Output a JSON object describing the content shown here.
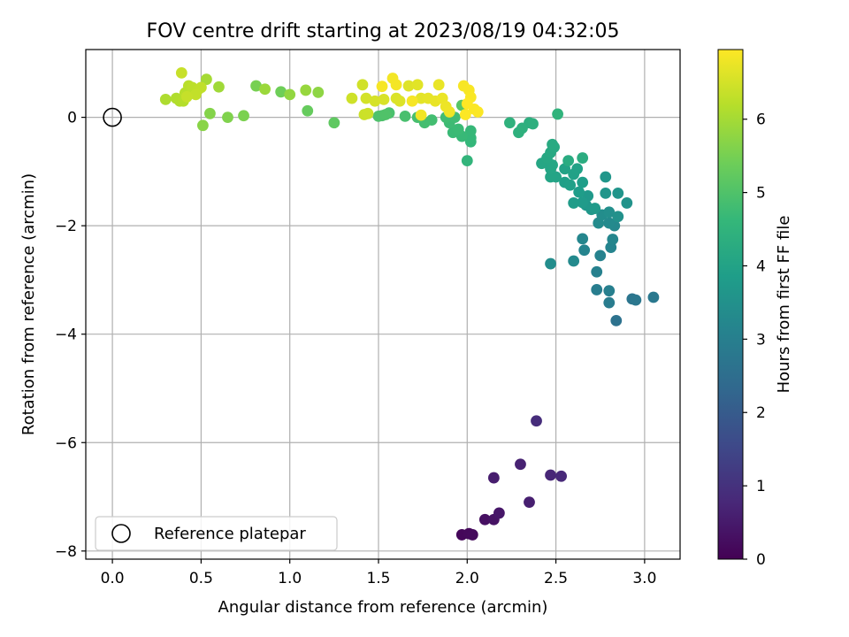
{
  "chart_data": {
    "type": "scatter",
    "title": "FOV centre drift starting at 2023/08/19 04:32:05",
    "xlabel": "Angular distance from reference (arcmin)",
    "ylabel": "Rotation from reference (arcmin)",
    "xlim": [
      -0.15,
      3.2
    ],
    "ylim": [
      -8.15,
      1.25
    ],
    "xticks": [
      0.0,
      0.5,
      1.0,
      1.5,
      2.0,
      2.5,
      3.0
    ],
    "xtick_labels": [
      "0.0",
      "0.5",
      "1.0",
      "1.5",
      "2.0",
      "2.5",
      "3.0"
    ],
    "yticks": [
      0,
      -2,
      -4,
      -6,
      -8
    ],
    "ytick_labels": [
      "0",
      "−2",
      "−4",
      "−6",
      "−8"
    ],
    "grid": true,
    "legend": {
      "position": "lower-left",
      "entries": [
        "Reference platepar"
      ]
    },
    "reference_point": {
      "x": 0.0,
      "y": 0.0,
      "label": "Reference platepar"
    },
    "colorbar": {
      "label": "Hours from first FF file",
      "colormap": "viridis",
      "range": [
        0,
        6.95
      ],
      "ticks": [
        0,
        1,
        2,
        3,
        4,
        5,
        6
      ],
      "tick_labels": [
        "0",
        "1",
        "2",
        "3",
        "4",
        "5",
        "6"
      ]
    },
    "colormap_stops": [
      "#440154",
      "#482878",
      "#3e4989",
      "#31688e",
      "#26828e",
      "#1f9e89",
      "#35b779",
      "#6ece58",
      "#b5de2b",
      "#fde725"
    ],
    "series": [
      {
        "values": [
          [
            1.97,
            -7.7,
            0.12
          ],
          [
            2.01,
            -7.68,
            0.15
          ],
          [
            2.03,
            -7.7,
            0.18
          ],
          [
            2.1,
            -7.42,
            0.3
          ],
          [
            2.15,
            -7.42,
            0.35
          ],
          [
            2.18,
            -7.3,
            0.42
          ],
          [
            2.15,
            -6.65,
            0.55
          ],
          [
            2.3,
            -6.4,
            0.65
          ],
          [
            2.35,
            -7.1,
            0.6
          ],
          [
            2.47,
            -6.6,
            0.75
          ],
          [
            2.53,
            -6.62,
            0.8
          ],
          [
            2.39,
            -5.6,
            0.9
          ],
          [
            2.84,
            -3.75,
            2.6
          ],
          [
            2.93,
            -3.35,
            2.7
          ],
          [
            2.95,
            -3.37,
            2.75
          ],
          [
            3.05,
            -3.32,
            2.8
          ],
          [
            2.8,
            -3.42,
            2.9
          ],
          [
            2.73,
            -3.18,
            2.95
          ],
          [
            2.8,
            -3.2,
            3.0
          ],
          [
            2.73,
            -2.85,
            3.05
          ],
          [
            2.75,
            -2.55,
            3.1
          ],
          [
            2.81,
            -2.4,
            3.15
          ],
          [
            2.82,
            -2.25,
            3.2
          ],
          [
            2.83,
            -2.0,
            3.25
          ],
          [
            2.8,
            -1.95,
            3.3
          ],
          [
            2.74,
            -1.95,
            3.35
          ],
          [
            2.76,
            -1.8,
            3.4
          ],
          [
            2.8,
            -1.75,
            3.45
          ],
          [
            2.85,
            -1.83,
            3.5
          ],
          [
            2.9,
            -1.58,
            3.55
          ],
          [
            2.85,
            -1.4,
            3.6
          ],
          [
            2.78,
            -1.4,
            3.62
          ],
          [
            2.78,
            -1.1,
            3.65
          ],
          [
            2.7,
            -1.7,
            3.68
          ],
          [
            2.67,
            -1.62,
            3.7
          ],
          [
            2.68,
            -1.45,
            3.72
          ],
          [
            2.72,
            -1.68,
            3.75
          ],
          [
            2.65,
            -1.57,
            3.78
          ],
          [
            2.6,
            -1.58,
            3.8
          ],
          [
            2.63,
            -1.38,
            3.82
          ],
          [
            2.65,
            -1.2,
            3.85
          ],
          [
            2.65,
            -2.24,
            3.2
          ],
          [
            2.66,
            -2.45,
            3.15
          ],
          [
            2.6,
            -2.65,
            3.3
          ],
          [
            2.47,
            -2.7,
            3.4
          ],
          [
            2.55,
            -1.2,
            3.9
          ],
          [
            2.58,
            -1.25,
            3.92
          ],
          [
            2.6,
            -1.05,
            3.95
          ],
          [
            2.62,
            -0.95,
            3.97
          ],
          [
            2.55,
            -0.95,
            4.0
          ],
          [
            2.5,
            -1.1,
            4.02
          ],
          [
            2.47,
            -1.1,
            4.05
          ],
          [
            2.47,
            -0.95,
            4.07
          ],
          [
            2.48,
            -0.88,
            4.1
          ],
          [
            2.42,
            -0.85,
            4.12
          ],
          [
            2.45,
            -0.75,
            4.15
          ],
          [
            2.47,
            -0.65,
            4.18
          ],
          [
            2.49,
            -0.55,
            4.2
          ],
          [
            2.48,
            -0.5,
            4.22
          ],
          [
            2.57,
            -0.8,
            4.25
          ],
          [
            2.65,
            -0.75,
            4.3
          ],
          [
            2.35,
            -0.1,
            4.35
          ],
          [
            2.37,
            -0.12,
            4.38
          ],
          [
            2.31,
            -0.2,
            4.4
          ],
          [
            2.29,
            -0.28,
            4.42
          ],
          [
            2.24,
            -0.1,
            4.45
          ],
          [
            2.51,
            0.06,
            4.5
          ],
          [
            2.0,
            -0.8,
            4.55
          ],
          [
            2.02,
            -0.45,
            4.6
          ],
          [
            2.02,
            -0.38,
            4.62
          ],
          [
            2.02,
            -0.25,
            4.65
          ],
          [
            1.97,
            -0.35,
            4.68
          ],
          [
            1.92,
            -0.28,
            4.7
          ],
          [
            1.95,
            -0.22,
            4.72
          ],
          [
            1.9,
            -0.1,
            4.75
          ],
          [
            1.93,
            0.0,
            4.78
          ],
          [
            1.88,
            0.0,
            4.8
          ],
          [
            1.8,
            -0.05,
            4.82
          ],
          [
            1.76,
            -0.1,
            4.85
          ],
          [
            1.72,
            0.0,
            4.88
          ],
          [
            1.65,
            0.02,
            4.9
          ],
          [
            1.56,
            0.08,
            4.92
          ],
          [
            1.52,
            0.03,
            4.95
          ],
          [
            1.5,
            0.02,
            4.97
          ],
          [
            1.54,
            0.05,
            5.0
          ],
          [
            1.97,
            0.22,
            5.1
          ],
          [
            1.25,
            -0.1,
            5.2
          ],
          [
            1.1,
            0.12,
            5.3
          ],
          [
            0.95,
            0.47,
            5.4
          ],
          [
            0.81,
            0.58,
            5.5
          ],
          [
            0.74,
            0.03,
            5.55
          ],
          [
            0.65,
            0.0,
            5.6
          ],
          [
            0.55,
            0.07,
            5.65
          ],
          [
            0.51,
            -0.15,
            5.7
          ],
          [
            1.16,
            0.46,
            5.75
          ],
          [
            1.0,
            0.42,
            5.8
          ],
          [
            1.09,
            0.5,
            5.85
          ],
          [
            0.86,
            0.52,
            5.9
          ],
          [
            0.6,
            0.56,
            5.95
          ],
          [
            0.53,
            0.7,
            6.0
          ],
          [
            0.3,
            0.33,
            6.1
          ],
          [
            0.36,
            0.35,
            6.12
          ],
          [
            0.38,
            0.3,
            6.15
          ],
          [
            0.4,
            0.3,
            6.17
          ],
          [
            0.41,
            0.45,
            6.2
          ],
          [
            0.43,
            0.58,
            6.22
          ],
          [
            0.45,
            0.55,
            6.25
          ],
          [
            0.48,
            0.5,
            6.27
          ],
          [
            0.5,
            0.55,
            6.3
          ],
          [
            0.47,
            0.42,
            6.32
          ],
          [
            0.42,
            0.38,
            6.35
          ],
          [
            0.39,
            0.82,
            6.37
          ],
          [
            1.42,
            0.05,
            6.4
          ],
          [
            1.44,
            0.07,
            6.42
          ],
          [
            1.35,
            0.35,
            6.45
          ],
          [
            1.41,
            0.6,
            6.47
          ],
          [
            1.43,
            0.35,
            6.5
          ],
          [
            1.48,
            0.3,
            6.52
          ],
          [
            1.53,
            0.33,
            6.55
          ],
          [
            1.6,
            0.35,
            6.57
          ],
          [
            1.62,
            0.3,
            6.6
          ],
          [
            1.67,
            0.58,
            6.62
          ],
          [
            1.72,
            0.6,
            6.65
          ],
          [
            1.74,
            0.35,
            6.67
          ],
          [
            1.78,
            0.35,
            6.7
          ],
          [
            1.82,
            0.3,
            6.72
          ],
          [
            1.84,
            0.6,
            6.74
          ],
          [
            1.86,
            0.35,
            6.76
          ],
          [
            1.88,
            0.2,
            6.78
          ],
          [
            1.9,
            0.1,
            6.8
          ],
          [
            1.74,
            0.04,
            6.82
          ],
          [
            1.58,
            0.72,
            6.84
          ],
          [
            1.6,
            0.6,
            6.85
          ],
          [
            1.52,
            0.57,
            6.87
          ],
          [
            1.69,
            0.3,
            6.88
          ],
          [
            1.98,
            0.58,
            6.89
          ],
          [
            2.01,
            0.5,
            6.9
          ],
          [
            2.02,
            0.37,
            6.91
          ],
          [
            2.04,
            0.15,
            6.92
          ],
          [
            2.06,
            0.1,
            6.93
          ],
          [
            1.99,
            0.05,
            6.94
          ],
          [
            2.0,
            0.25,
            6.95
          ]
        ]
      }
    ]
  }
}
